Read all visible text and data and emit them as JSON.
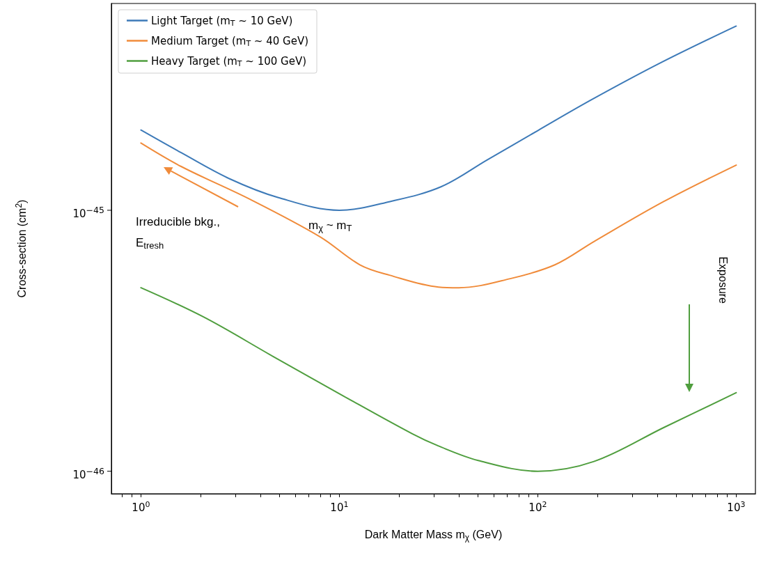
{
  "chart_data": {
    "type": "line",
    "xlabel": "Dark Matter Mass m$_{χ}$ (GeV)",
    "ylabel": "Cross-section (cm$^{2}$)",
    "log": "xy",
    "grid": false,
    "legend": "top left",
    "xlim": [
      0.71,
      1250
    ],
    "ylim": [
      8.2e-47,
      6.2e-45
    ],
    "xticks": [
      {
        "value": 0.8,
        "label": null
      },
      {
        "value": 0.9,
        "label": null
      },
      {
        "value": 1,
        "label": "10$^{0}$"
      },
      {
        "value": 2,
        "label": null
      },
      {
        "value": 3,
        "label": null
      },
      {
        "value": 4,
        "label": null
      },
      {
        "value": 5,
        "label": null
      },
      {
        "value": 6,
        "label": null
      },
      {
        "value": 7,
        "label": null
      },
      {
        "value": 8,
        "label": null
      },
      {
        "value": 9,
        "label": null
      },
      {
        "value": 10,
        "label": "10$^{1}$"
      },
      {
        "value": 20,
        "label": null
      },
      {
        "value": 30,
        "label": null
      },
      {
        "value": 40,
        "label": null
      },
      {
        "value": 50,
        "label": null
      },
      {
        "value": 60,
        "label": null
      },
      {
        "value": 70,
        "label": null
      },
      {
        "value": 80,
        "label": null
      },
      {
        "value": 90,
        "label": null
      },
      {
        "value": 100,
        "label": "10$^{2}$"
      },
      {
        "value": 200,
        "label": null
      },
      {
        "value": 300,
        "label": null
      },
      {
        "value": 400,
        "label": null
      },
      {
        "value": 500,
        "label": null
      },
      {
        "value": 600,
        "label": null
      },
      {
        "value": 700,
        "label": null
      },
      {
        "value": 800,
        "label": null
      },
      {
        "value": 900,
        "label": null
      },
      {
        "value": 1000,
        "label": "10$^{3}$"
      }
    ],
    "yticks": [
      {
        "value": 1e-46,
        "label": "10$^{−46}$"
      },
      {
        "value": 1e-45,
        "label": "10$^{−45}$"
      }
    ],
    "series": [
      {
        "name": "Light Target (m$_{T}$ ~ 10 GeV)",
        "color": "#3d7ab8",
        "x": [
          1,
          1.6,
          2.8,
          4.9,
          10,
          18,
          32.5,
          55.6,
          100,
          188,
          421,
          1000
        ],
        "values": [
          2.03e-45,
          1.66e-45,
          1.32e-45,
          1.12e-45,
          1e-45,
          1.08e-45,
          1.23e-45,
          1.56e-45,
          2.02e-45,
          2.66e-45,
          3.69e-45,
          5.08e-45
        ]
      },
      {
        "name": "Medium Target (m$_{T}$ ~ 40 GeV)",
        "color": "#f08b3a",
        "x": [
          1,
          1.6,
          3.56,
          8,
          12.7,
          17.9,
          31.6,
          40,
          72.7,
          122,
          192,
          431,
          1000
        ],
        "values": [
          1.81e-45,
          1.47e-45,
          1.1e-45,
          7.91e-46,
          6.18e-46,
          5.64e-46,
          5.08e-46,
          5.05e-46,
          5.47e-46,
          6.18e-46,
          7.59e-46,
          1.08e-45,
          1.49e-45
        ]
      },
      {
        "name": "Heavy Target (m$_{T}$ ~ 100 GeV)",
        "color": "#4f9e3e",
        "x": [
          1,
          2.07,
          4.65,
          10.4,
          23.4,
          31.6,
          50.1,
          100,
          192,
          431,
          1000
        ],
        "values": [
          5.05e-46,
          3.9e-46,
          2.75e-46,
          1.95e-46,
          1.39e-46,
          1.25e-46,
          1.1e-46,
          1e-46,
          1.09e-46,
          1.47e-46,
          2e-46
        ]
      }
    ],
    "annotations": [
      "Irreducible bkg.,\nE$_{tresh}$",
      "m$_{χ}$ ~ m$_{T}$",
      "Exposure"
    ]
  }
}
